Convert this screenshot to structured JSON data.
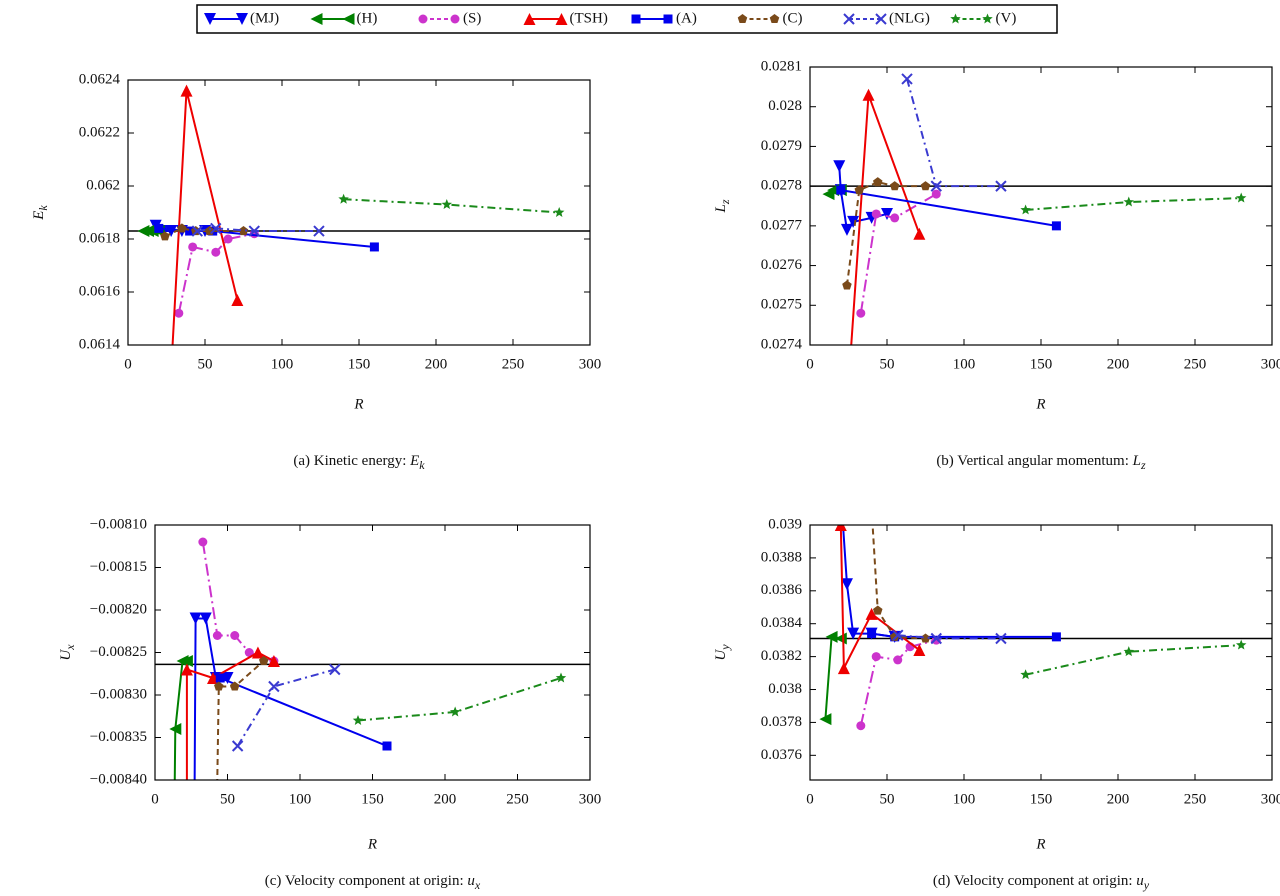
{
  "legend": [
    {
      "name": "(MJ)",
      "color": "#0000ee",
      "marker": "tri-down",
      "dash": "none"
    },
    {
      "name": "(H)",
      "color": "#008000",
      "marker": "tri-left",
      "dash": "none"
    },
    {
      "name": "(S)",
      "color": "#cc33cc",
      "marker": "circle",
      "dash": "12,4,2,4"
    },
    {
      "name": "(TSH)",
      "color": "#ee0000",
      "marker": "tri-up",
      "dash": "none"
    },
    {
      "name": "(A)",
      "color": "#0000ee",
      "marker": "square",
      "dash": "none"
    },
    {
      "name": "(C)",
      "color": "#7a4a1a",
      "marker": "pentagon",
      "dash": "6,4"
    },
    {
      "name": "(NLG)",
      "color": "#3a3ad0",
      "marker": "cross",
      "dash": "8,4,2,4"
    },
    {
      "name": "(V)",
      "color": "#1a8a1a",
      "marker": "star",
      "dash": "8,4,2,4"
    }
  ],
  "chart_data": [
    {
      "type": "line",
      "xlabel": "R",
      "ylabel": "E",
      "ylabel_sub": "k",
      "caption": "(a) Kinetic energy: ",
      "caption_var": "E",
      "caption_sub": "k",
      "xlim": [
        0,
        300
      ],
      "xticks": [
        0,
        50,
        100,
        150,
        200,
        250,
        300
      ],
      "ylim": [
        0.0614,
        0.0624
      ],
      "yticks": [
        0.0614,
        0.0616,
        0.0618,
        0.062,
        0.0622,
        0.0624
      ],
      "reference": 0.06183,
      "series": [
        {
          "x": [
            18,
            22,
            28,
            35,
            50
          ],
          "values": [
            0.06185,
            0.06183,
            0.06183,
            0.06183,
            0.06183
          ]
        },
        {
          "x": [
            10,
            13,
            16,
            20
          ],
          "values": [
            0.06183,
            0.06183,
            0.06183,
            0.06183
          ]
        },
        {
          "x": [
            33,
            42,
            57,
            65,
            82
          ],
          "values": [
            0.06152,
            0.06177,
            0.06175,
            0.0618,
            0.06182
          ]
        },
        {
          "x": [
            28,
            38,
            71
          ],
          "values": [
            0.0613,
            0.06236,
            0.06157
          ]
        },
        {
          "x": [
            20,
            40,
            55,
            160
          ],
          "values": [
            0.06184,
            0.06183,
            0.06183,
            0.06177
          ]
        },
        {
          "x": [
            24,
            35,
            44,
            53,
            75
          ],
          "values": [
            0.06181,
            0.06184,
            0.06183,
            0.06183,
            0.06183
          ]
        },
        {
          "x": [
            45,
            57,
            82,
            124
          ],
          "values": [
            0.06183,
            0.06184,
            0.06183,
            0.06183
          ]
        },
        {
          "x": [
            140,
            207,
            280
          ],
          "values": [
            0.06195,
            0.06193,
            0.0619
          ]
        }
      ]
    },
    {
      "type": "line",
      "xlabel": "R",
      "ylabel": "L",
      "ylabel_sub": "z",
      "caption": "(b) Vertical angular momentum: ",
      "caption_var": "L",
      "caption_sub": "z",
      "xlim": [
        0,
        300
      ],
      "xticks": [
        0,
        50,
        100,
        150,
        200,
        250,
        300
      ],
      "ylim": [
        0.0274,
        0.0281
      ],
      "yticks": [
        0.0274,
        0.0275,
        0.0276,
        0.0277,
        0.0278,
        0.0279,
        0.028,
        0.0281
      ],
      "reference": 0.0278,
      "series": [
        {
          "x": [
            19,
            20,
            24,
            28,
            40,
            50
          ],
          "values": [
            0.02785,
            0.02779,
            0.02769,
            0.02771,
            0.02772,
            0.02773
          ]
        },
        {
          "x": [
            12,
            15,
            20
          ],
          "values": [
            0.02778,
            0.02779,
            0.02779
          ]
        },
        {
          "x": [
            33,
            43,
            55,
            82
          ],
          "values": [
            0.02748,
            0.02773,
            0.02772,
            0.02778
          ]
        },
        {
          "x": [
            25,
            38,
            71
          ],
          "values": [
            0.0273,
            0.02803,
            0.02768
          ]
        },
        {
          "x": [
            20,
            160
          ],
          "values": [
            0.02779,
            0.0277
          ]
        },
        {
          "x": [
            24,
            32,
            44,
            55,
            75
          ],
          "values": [
            0.02755,
            0.02779,
            0.02781,
            0.0278,
            0.0278
          ]
        },
        {
          "x": [
            63,
            82,
            124
          ],
          "values": [
            0.02807,
            0.0278,
            0.0278
          ]
        },
        {
          "x": [
            140,
            207,
            280
          ],
          "values": [
            0.02774,
            0.02776,
            0.02777
          ]
        }
      ]
    },
    {
      "type": "line",
      "xlabel": "R",
      "ylabel": "U",
      "ylabel_sub": "x",
      "caption": "(c) Velocity component at origin: ",
      "caption_var": "u",
      "caption_sub": "x",
      "xlim": [
        0,
        300
      ],
      "xticks": [
        0,
        50,
        100,
        150,
        200,
        250,
        300
      ],
      "ylim": [
        -0.0084,
        -0.0081
      ],
      "yticks": [
        {
          "value": -0.0084,
          "label": "−0.00840"
        },
        {
          "value": -0.00835,
          "label": "−0.00835"
        },
        {
          "value": -0.0083,
          "label": "−0.00830"
        },
        {
          "value": -0.00825,
          "label": "−0.00825"
        },
        {
          "value": -0.0082,
          "label": "−0.00820"
        },
        {
          "value": -0.00815,
          "label": "−0.00815"
        },
        {
          "value": -0.0081,
          "label": "−0.00810"
        }
      ],
      "reference": -0.008264,
      "series": [
        {
          "x": [
            27,
            28,
            35,
            42,
            50
          ],
          "values": [
            -0.0085,
            -0.00821,
            -0.00821,
            -0.00828,
            -0.00828
          ]
        },
        {
          "x": [
            13,
            14,
            19,
            22
          ],
          "values": [
            -0.0085,
            -0.00834,
            -0.00826,
            -0.00826
          ]
        },
        {
          "x": [
            33,
            43,
            55,
            65,
            82
          ],
          "values": [
            -0.00812,
            -0.00823,
            -0.00823,
            -0.00825,
            -0.00826
          ]
        },
        {
          "x": [
            22,
            22,
            40,
            71,
            82
          ],
          "values": [
            -0.0085,
            -0.00827,
            -0.00828,
            -0.00825,
            -0.00826
          ]
        },
        {
          "x": [
            45,
            160
          ],
          "values": [
            -0.00828,
            -0.00836
          ]
        },
        {
          "x": [
            42,
            44,
            55,
            75
          ],
          "values": [
            -0.0085,
            -0.00829,
            -0.00829,
            -0.00826
          ]
        },
        {
          "x": [
            57,
            82,
            124
          ],
          "values": [
            -0.00836,
            -0.00829,
            -0.00827
          ]
        },
        {
          "x": [
            140,
            207,
            280
          ],
          "values": [
            -0.00833,
            -0.00832,
            -0.00828
          ]
        }
      ]
    },
    {
      "type": "line",
      "xlabel": "R",
      "ylabel": "U",
      "ylabel_sub": "y",
      "caption": "(d) Velocity component at origin: ",
      "caption_var": "u",
      "caption_sub": "y",
      "xlim": [
        0,
        300
      ],
      "xticks": [
        0,
        50,
        100,
        150,
        200,
        250,
        300
      ],
      "ylim": [
        0.03745,
        0.039
      ],
      "yticks": [
        0.0376,
        0.0378,
        0.038,
        0.0382,
        0.0384,
        0.0386,
        0.0388,
        0.039
      ],
      "reference": 0.03831,
      "series": [
        {
          "x": [
            20,
            24,
            28,
            40,
            55
          ],
          "values": [
            0.0392,
            0.03864,
            0.03834,
            0.03834,
            0.03832
          ]
        },
        {
          "x": [
            10,
            14,
            20
          ],
          "values": [
            0.03782,
            0.03832,
            0.03831
          ]
        },
        {
          "x": [
            33,
            43,
            57,
            65,
            82
          ],
          "values": [
            0.03778,
            0.0382,
            0.03818,
            0.03826,
            0.0383
          ]
        },
        {
          "x": [
            20,
            22,
            40,
            71
          ],
          "values": [
            0.039,
            0.03813,
            0.03846,
            0.03824
          ]
        },
        {
          "x": [
            40,
            55,
            160
          ],
          "values": [
            0.03834,
            0.03832,
            0.03832
          ]
        },
        {
          "x": [
            40,
            44,
            55,
            75
          ],
          "values": [
            0.0391,
            0.03848,
            0.03832,
            0.03831
          ]
        },
        {
          "x": [
            57,
            82,
            124
          ],
          "values": [
            0.03833,
            0.03831,
            0.03831
          ]
        },
        {
          "x": [
            140,
            207,
            280
          ],
          "values": [
            0.03809,
            0.03823,
            0.03827
          ]
        }
      ]
    }
  ]
}
